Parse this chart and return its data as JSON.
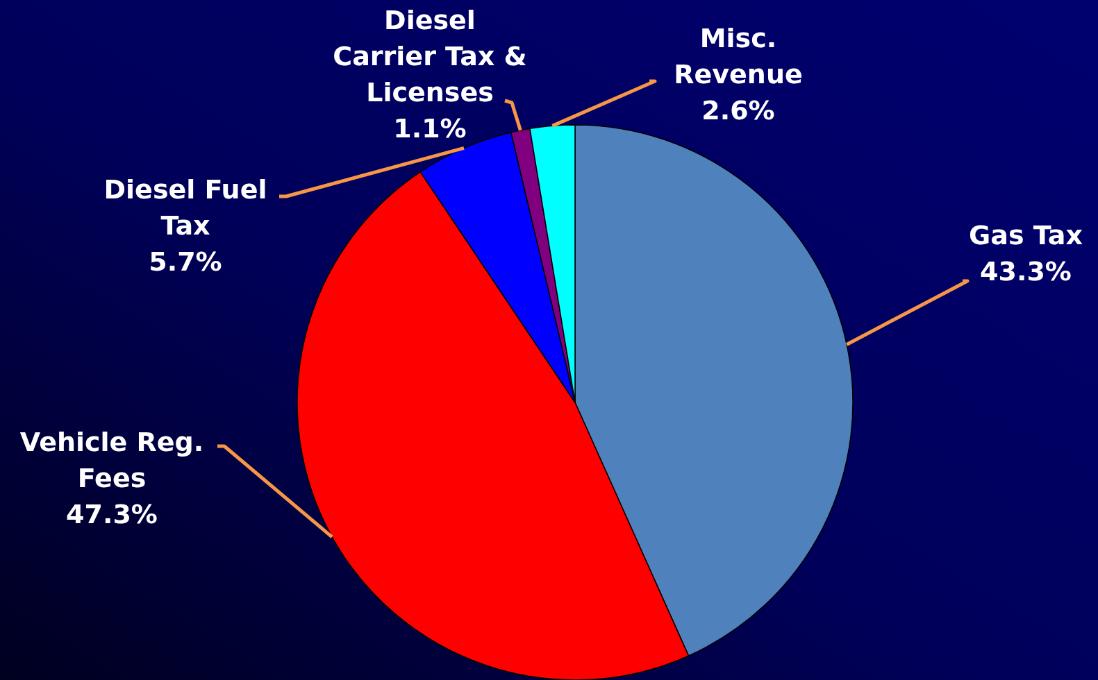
{
  "chart_data": {
    "type": "pie",
    "categories": [
      "Gas Tax",
      "Vehicle Reg. Fees",
      "Diesel Fuel Tax",
      "Diesel Carrier Tax & Licenses",
      "Misc. Revenue"
    ],
    "values": [
      43.3,
      47.3,
      5.7,
      1.1,
      2.6
    ],
    "colors": [
      "#4f81bd",
      "#ff0000",
      "#0000ff",
      "#800080",
      "#00ffff"
    ],
    "value_labels": [
      "43.3%",
      "47.3%",
      "5.7%",
      "1.1%",
      "2.6%"
    ]
  }
}
